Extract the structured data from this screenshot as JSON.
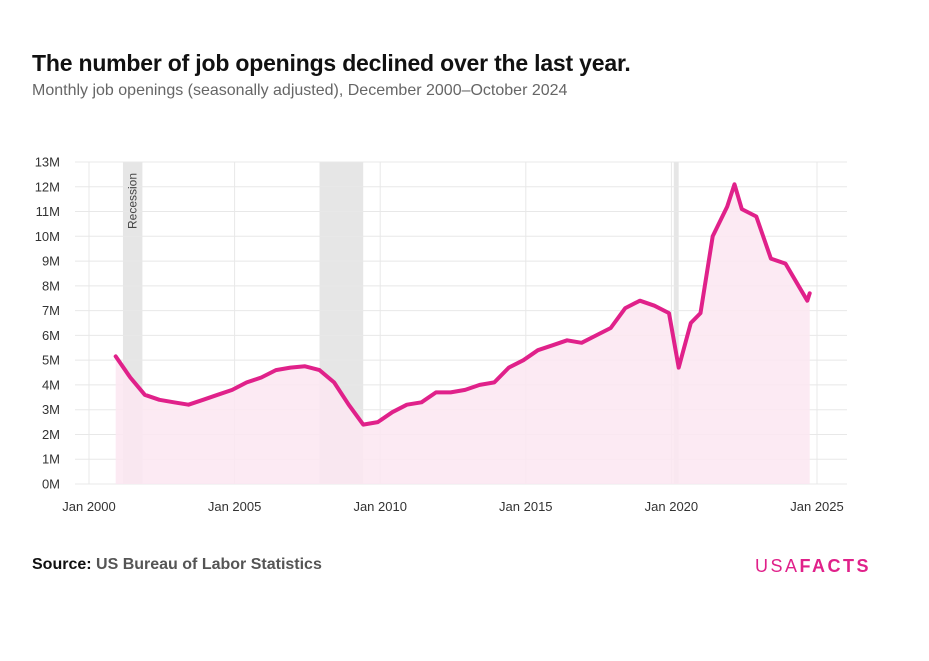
{
  "header": {
    "title": "The number of job openings declined over the last year.",
    "subtitle": "Monthly job openings (seasonally adjusted), December 2000–October 2024"
  },
  "footer": {
    "source_label": "Source:",
    "source_text": "US Bureau of Labor Statistics",
    "logo_part1": "USA",
    "logo_part2": "FACTS"
  },
  "colors": {
    "line": "#e0218a",
    "area": "#fbe6f1",
    "recession": "#e6e6e6",
    "grid": "#e8e8e8"
  },
  "chart_data": {
    "type": "area",
    "title": "The number of job openings declined over the last year.",
    "subtitle": "Monthly job openings (seasonally adjusted), December 2000–October 2024",
    "xlabel": "",
    "ylabel": "",
    "x_ticks": [
      "Jan 2000",
      "Jan 2005",
      "Jan 2010",
      "Jan 2015",
      "Jan 2020",
      "Jan 2025"
    ],
    "y_ticks": [
      "0M",
      "1M",
      "2M",
      "3M",
      "4M",
      "5M",
      "6M",
      "7M",
      "8M",
      "9M",
      "10M",
      "11M",
      "12M",
      "13M"
    ],
    "ylim": [
      0,
      13
    ],
    "xlim": [
      "2000-01",
      "2025-01"
    ],
    "grid": true,
    "recession_label": "Recession",
    "recessions": [
      {
        "start": "2001-03",
        "end": "2001-11"
      },
      {
        "start": "2007-12",
        "end": "2009-06"
      },
      {
        "start": "2020-02",
        "end": "2020-04"
      }
    ],
    "series": [
      {
        "unit": "millions",
        "points": [
          [
            "2000-12",
            5.15
          ],
          [
            "2001-06",
            4.3
          ],
          [
            "2001-12",
            3.6
          ],
          [
            "2002-06",
            3.4
          ],
          [
            "2002-12",
            3.3
          ],
          [
            "2003-06",
            3.2
          ],
          [
            "2003-12",
            3.4
          ],
          [
            "2004-06",
            3.6
          ],
          [
            "2004-12",
            3.8
          ],
          [
            "2005-06",
            4.1
          ],
          [
            "2005-12",
            4.3
          ],
          [
            "2006-06",
            4.6
          ],
          [
            "2006-12",
            4.7
          ],
          [
            "2007-06",
            4.75
          ],
          [
            "2007-12",
            4.6
          ],
          [
            "2008-06",
            4.1
          ],
          [
            "2008-12",
            3.2
          ],
          [
            "2009-06",
            2.4
          ],
          [
            "2009-12",
            2.5
          ],
          [
            "2010-06",
            2.9
          ],
          [
            "2010-12",
            3.2
          ],
          [
            "2011-06",
            3.3
          ],
          [
            "2011-12",
            3.7
          ],
          [
            "2012-06",
            3.7
          ],
          [
            "2012-12",
            3.8
          ],
          [
            "2013-06",
            4.0
          ],
          [
            "2013-12",
            4.1
          ],
          [
            "2014-06",
            4.7
          ],
          [
            "2014-12",
            5.0
          ],
          [
            "2015-06",
            5.4
          ],
          [
            "2015-12",
            5.6
          ],
          [
            "2016-06",
            5.8
          ],
          [
            "2016-12",
            5.7
          ],
          [
            "2017-06",
            6.0
          ],
          [
            "2017-12",
            6.3
          ],
          [
            "2018-06",
            7.1
          ],
          [
            "2018-12",
            7.4
          ],
          [
            "2019-06",
            7.2
          ],
          [
            "2019-12",
            6.9
          ],
          [
            "2020-04",
            4.7
          ],
          [
            "2020-09",
            6.5
          ],
          [
            "2021-01",
            6.9
          ],
          [
            "2021-06",
            10.0
          ],
          [
            "2021-12",
            11.2
          ],
          [
            "2022-03",
            12.1
          ],
          [
            "2022-06",
            11.1
          ],
          [
            "2022-12",
            10.8
          ],
          [
            "2023-06",
            9.1
          ],
          [
            "2023-12",
            8.9
          ],
          [
            "2024-06",
            7.9
          ],
          [
            "2024-09",
            7.4
          ],
          [
            "2024-10",
            7.7
          ]
        ]
      }
    ]
  }
}
